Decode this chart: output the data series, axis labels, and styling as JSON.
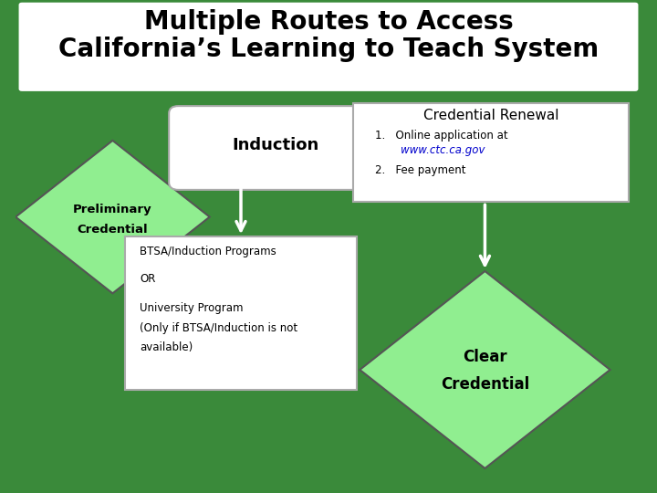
{
  "title_line1": "Multiple Routes to Access",
  "title_line2": "California’s Learning to Teach System",
  "title_fontsize": 20,
  "title_bg": "#ffffff",
  "bg_color": "#3a8a3a",
  "induction_text": "Induction",
  "induction_box_color": "#ffffff",
  "prelim_text": "Preliminary\nCredential",
  "prelim_diamond_color": "#90ee90",
  "credential_renewal_title": "Credential Renewal",
  "credential_renewal_1": "1.   Online application at\n      www.ctc.ca.gov",
  "credential_renewal_2": "2.   Fee payment",
  "credential_renewal_url": "www.ctc.ca.gov",
  "credential_renewal_box_color": "#ffffff",
  "btsa_box_text": "BTSA/Induction Programs\n\nOR\n\nUniversity Program\n(Only if BTSA/Induction is not\navailable)",
  "btsa_box_color": "#ffffff",
  "clear_text": "Clear\n\nCredential",
  "clear_diamond_color": "#90ee90",
  "arrow_color": "#ffffff"
}
